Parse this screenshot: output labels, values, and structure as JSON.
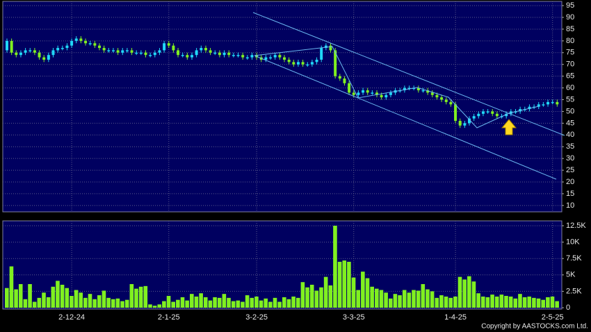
{
  "chart_data": [
    {
      "type": "candlestick",
      "up_color": "#20d8f8",
      "down_color": "#80f020",
      "grid": true,
      "ylim": [
        7.3,
        96.8
      ],
      "yticks": [
        10,
        15,
        20,
        25,
        30,
        35,
        40,
        45,
        50,
        55,
        60,
        65,
        70,
        75,
        80,
        85,
        90,
        95
      ],
      "categories": [
        null,
        null,
        null,
        null,
        null,
        null,
        null,
        null,
        null,
        null,
        null,
        null,
        null,
        null,
        "2-12-24",
        null,
        null,
        null,
        null,
        null,
        null,
        null,
        null,
        null,
        null,
        null,
        null,
        null,
        null,
        null,
        null,
        null,
        null,
        null,
        null,
        "2-1-25",
        null,
        null,
        null,
        null,
        null,
        null,
        null,
        null,
        null,
        null,
        null,
        null,
        null,
        null,
        null,
        null,
        null,
        null,
        "3-2-25",
        null,
        null,
        null,
        null,
        null,
        null,
        null,
        null,
        null,
        null,
        null,
        null,
        null,
        null,
        null,
        null,
        null,
        null,
        null,
        null,
        "3-3-25",
        null,
        null,
        null,
        null,
        null,
        null,
        null,
        null,
        null,
        null,
        null,
        null,
        null,
        null,
        null,
        null,
        null,
        null,
        null,
        null,
        null,
        "1-4-25",
        null,
        null,
        null,
        null,
        null,
        null,
        null,
        null,
        null,
        null,
        null,
        null,
        null,
        null,
        null,
        null,
        null,
        null,
        null,
        null,
        "2-5-25",
        null
      ],
      "open": [
        76,
        80,
        75,
        74,
        75,
        76,
        76,
        75,
        73,
        72,
        74,
        76,
        77,
        77,
        78,
        80,
        81,
        80,
        79,
        79,
        78,
        77,
        76,
        76,
        76,
        75,
        76,
        76,
        75,
        75,
        75,
        74,
        74,
        75,
        76,
        79,
        78,
        76,
        74,
        74,
        73,
        74,
        76,
        77,
        76,
        75,
        75,
        74,
        75,
        74,
        74,
        74,
        73,
        73,
        74,
        73,
        72,
        73,
        73,
        74,
        73,
        72,
        71,
        70,
        71,
        70,
        70,
        71,
        72,
        77,
        78,
        76,
        65,
        64,
        62,
        58,
        57,
        58,
        59,
        58,
        58,
        57,
        56,
        57,
        58,
        59,
        59,
        60,
        60,
        60,
        59,
        59,
        58,
        57,
        56,
        55,
        54,
        53,
        46,
        44,
        45,
        47,
        48,
        49,
        50,
        50,
        49,
        48,
        48,
        49,
        50,
        50,
        51,
        51,
        52,
        52,
        53,
        53,
        54,
        54
      ],
      "high": [
        81,
        81,
        76,
        76,
        77,
        77,
        77,
        76,
        74,
        75,
        77,
        78,
        78,
        79,
        81,
        82,
        82,
        81,
        80,
        80,
        79,
        78,
        77,
        77,
        77,
        77,
        77,
        77,
        76,
        76,
        76,
        75,
        76,
        77,
        80,
        80,
        79,
        77,
        75,
        75,
        75,
        77,
        78,
        78,
        77,
        76,
        76,
        76,
        76,
        75,
        75,
        75,
        74,
        75,
        75,
        74,
        74,
        74,
        75,
        75,
        74,
        73,
        72,
        72,
        72,
        71,
        72,
        73,
        78,
        79,
        79,
        77,
        66,
        65,
        63,
        59,
        59,
        60,
        60,
        59,
        59,
        58,
        58,
        59,
        60,
        60,
        61,
        61,
        61,
        61,
        60,
        60,
        59,
        58,
        57,
        56,
        55,
        54,
        47,
        46,
        48,
        49,
        50,
        51,
        51,
        51,
        50,
        49,
        50,
        51,
        51,
        52,
        52,
        53,
        53,
        54,
        54,
        55,
        55,
        55
      ],
      "low": [
        75,
        74,
        73,
        73,
        74,
        75,
        74,
        72,
        71,
        71,
        73,
        75,
        76,
        76,
        77,
        79,
        79,
        78,
        78,
        77,
        76,
        75,
        75,
        75,
        74,
        74,
        75,
        74,
        74,
        74,
        73,
        73,
        73,
        74,
        75,
        77,
        75,
        73,
        73,
        72,
        72,
        73,
        75,
        75,
        74,
        74,
        73,
        73,
        73,
        73,
        73,
        72,
        72,
        72,
        72,
        71,
        71,
        72,
        72,
        72,
        71,
        70,
        69,
        69,
        69,
        69,
        69,
        70,
        71,
        76,
        75,
        64,
        63,
        61,
        57,
        56,
        56,
        57,
        57,
        57,
        56,
        55,
        55,
        56,
        57,
        58,
        58,
        59,
        59,
        58,
        58,
        57,
        56,
        55,
        54,
        53,
        52,
        45,
        43,
        43,
        44,
        46,
        47,
        48,
        49,
        48,
        47,
        47,
        47,
        48,
        49,
        49,
        50,
        50,
        51,
        51,
        52,
        52,
        53,
        52
      ],
      "close": [
        80,
        75,
        74,
        75,
        76,
        76,
        75,
        73,
        72,
        74,
        76,
        77,
        77,
        78,
        80,
        81,
        80,
        79,
        79,
        78,
        77,
        76,
        76,
        76,
        75,
        76,
        76,
        75,
        75,
        75,
        74,
        74,
        75,
        76,
        79,
        78,
        76,
        74,
        74,
        73,
        74,
        76,
        77,
        76,
        75,
        75,
        74,
        75,
        74,
        74,
        74,
        73,
        73,
        74,
        73,
        72,
        73,
        73,
        74,
        73,
        72,
        71,
        70,
        71,
        70,
        70,
        71,
        72,
        77,
        78,
        76,
        65,
        64,
        62,
        58,
        57,
        58,
        59,
        58,
        58,
        57,
        56,
        57,
        58,
        59,
        59,
        60,
        60,
        60,
        59,
        59,
        58,
        57,
        56,
        55,
        54,
        53,
        46,
        44,
        45,
        47,
        48,
        49,
        50,
        50,
        49,
        48,
        48,
        49,
        50,
        50,
        51,
        51,
        52,
        52,
        53,
        53,
        54,
        54,
        53
      ]
    },
    {
      "type": "bar",
      "color": "#80f020",
      "grid": true,
      "ylim": [
        -210,
        13240
      ],
      "yticks": [
        0,
        {
          "value": 2500,
          "label": "2.5K"
        },
        {
          "value": 5000,
          "label": "5K"
        },
        {
          "value": 7500,
          "label": "7.5K"
        },
        {
          "value": 10000,
          "label": "10K"
        },
        {
          "value": 12500,
          "label": "12.5K"
        }
      ],
      "values": [
        3000,
        6300,
        2800,
        3600,
        1300,
        3600,
        900,
        1500,
        2300,
        1600,
        3200,
        4100,
        3500,
        3000,
        1800,
        2700,
        2300,
        1500,
        2100,
        1300,
        1900,
        2600,
        1500,
        1300,
        1400,
        1000,
        1200,
        3600,
        2900,
        3200,
        3300,
        500,
        300,
        500,
        1000,
        1800,
        900,
        1200,
        1600,
        1100,
        2100,
        1700,
        2200,
        1600,
        1100,
        1600,
        1500,
        2100,
        1500,
        1000,
        1100,
        900,
        1900,
        1500,
        1700,
        1100,
        1400,
        900,
        1500,
        900,
        1600,
        1300,
        1700,
        1500,
        3900,
        3100,
        3500,
        2600,
        3100,
        4700,
        3400,
        12500,
        7000,
        7200,
        7000,
        4600,
        2700,
        5500,
        4500,
        3200,
        2900,
        2700,
        2300,
        1400,
        2100,
        1900,
        2700,
        2300,
        2700,
        2600,
        3600,
        2800,
        2500,
        1500,
        1900,
        1700,
        1500,
        1700,
        4700,
        4300,
        4800,
        4000,
        2200,
        1700,
        1600,
        2000,
        1700,
        2000,
        1800,
        1700,
        1400,
        2100,
        1600,
        1700,
        1500,
        1400,
        1200,
        1600,
        1700,
        1000
      ]
    }
  ],
  "footer": "Copyright by AASTOCKS.com Ltd."
}
